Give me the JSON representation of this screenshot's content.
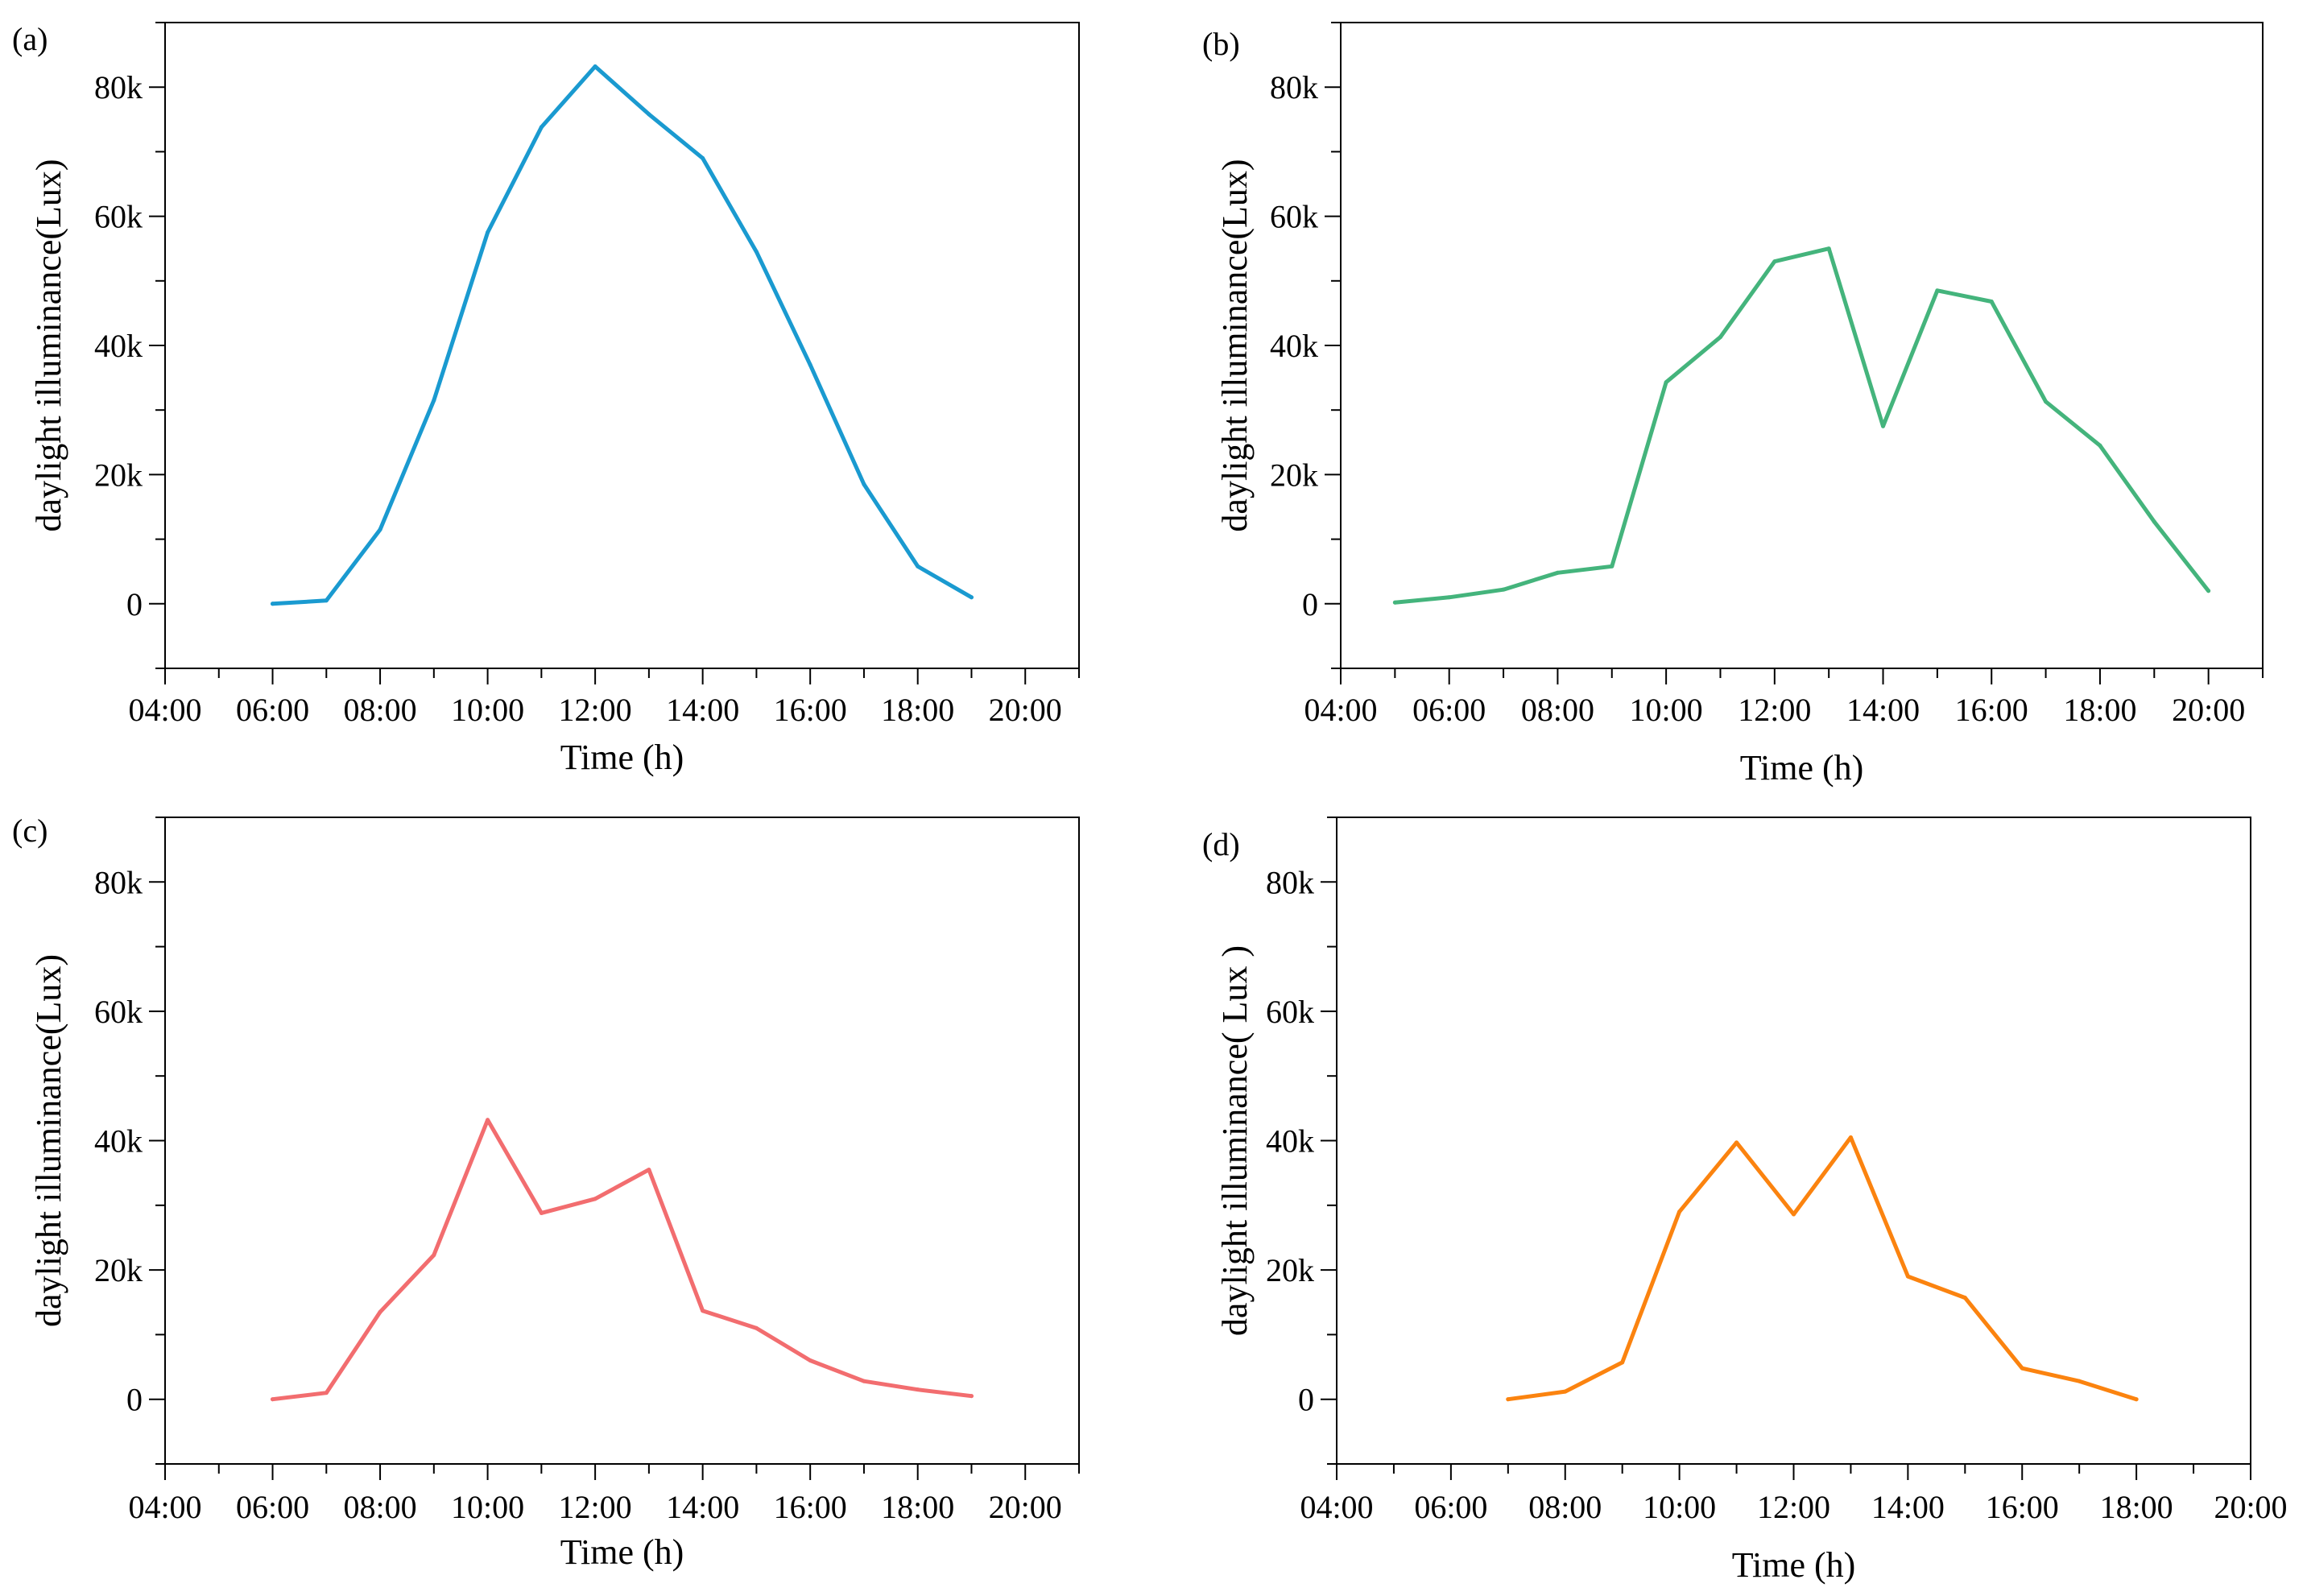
{
  "chart_data": [
    {
      "type": "line",
      "panel_label": "(a)",
      "xlabel": "Time (h)",
      "ylabel": "daylight illuminance(Lux)",
      "color": "#1a9ad0",
      "xlim": [
        4,
        21
      ],
      "ylim": [
        -10000,
        90000
      ],
      "xticks": [
        4,
        6,
        8,
        10,
        12,
        14,
        16,
        18,
        20
      ],
      "xtick_labels": [
        "04:00",
        "06:00",
        "08:00",
        "10:00",
        "12:00",
        "14:00",
        "16:00",
        "18:00",
        "20:00"
      ],
      "yticks": [
        0,
        20000,
        40000,
        60000,
        80000
      ],
      "ytick_labels": [
        "0",
        "20k",
        "40k",
        "60k",
        "80k"
      ],
      "x": [
        6,
        7,
        8,
        9,
        10,
        11,
        12,
        13,
        14,
        15,
        16,
        17,
        18,
        19
      ],
      "values": [
        0,
        500,
        11500,
        31500,
        57500,
        73800,
        83200,
        75800,
        69000,
        54500,
        37000,
        18500,
        5800,
        1000
      ]
    },
    {
      "type": "line",
      "panel_label": "(b)",
      "xlabel": "Time (h)",
      "ylabel": "daylight illuminance(Lux)",
      "color": "#44b47c",
      "xlim": [
        4,
        21
      ],
      "ylim": [
        -10000,
        90000
      ],
      "xticks": [
        4,
        6,
        8,
        10,
        12,
        14,
        16,
        18,
        20
      ],
      "xtick_labels": [
        "04:00",
        "06:00",
        "08:00",
        "10:00",
        "12:00",
        "14:00",
        "16:00",
        "18:00",
        "20:00"
      ],
      "yticks": [
        0,
        20000,
        40000,
        60000,
        80000
      ],
      "ytick_labels": [
        "0",
        "20k",
        "40k",
        "60k",
        "80k"
      ],
      "x": [
        5,
        6,
        7,
        8,
        9,
        10,
        11,
        12,
        13,
        14,
        15,
        16,
        17,
        18,
        19,
        20
      ],
      "values": [
        200,
        1000,
        2200,
        4800,
        5800,
        34300,
        41300,
        53000,
        55000,
        27500,
        48500,
        46800,
        31300,
        24500,
        12700,
        2000
      ]
    },
    {
      "type": "line",
      "panel_label": "(c)",
      "xlabel": "Time (h)",
      "ylabel": "daylight illuminance(Lux)",
      "color": "#f26d6f",
      "xlim": [
        4,
        21
      ],
      "ylim": [
        -10000,
        90000
      ],
      "xticks": [
        4,
        6,
        8,
        10,
        12,
        14,
        16,
        18,
        20
      ],
      "xtick_labels": [
        "04:00",
        "06:00",
        "08:00",
        "10:00",
        "12:00",
        "14:00",
        "16:00",
        "18:00",
        "20:00"
      ],
      "yticks": [
        0,
        20000,
        40000,
        60000,
        80000
      ],
      "ytick_labels": [
        "0",
        "20k",
        "40k",
        "60k",
        "80k"
      ],
      "x": [
        6,
        7,
        8,
        9,
        10,
        11,
        12,
        13,
        14,
        15,
        16,
        17,
        18,
        19
      ],
      "values": [
        0,
        1000,
        13500,
        22300,
        43200,
        28800,
        31000,
        35500,
        13700,
        11000,
        6000,
        2800,
        1500,
        500
      ]
    },
    {
      "type": "line",
      "panel_label": "(d)",
      "xlabel": "Time (h)",
      "ylabel": "daylight illuminance( Lux )",
      "color": "#fb830f",
      "xlim": [
        4,
        20
      ],
      "ylim": [
        -10000,
        90000
      ],
      "xticks": [
        4,
        6,
        8,
        10,
        12,
        14,
        16,
        18,
        20
      ],
      "xtick_labels": [
        "04:00",
        "06:00",
        "08:00",
        "10:00",
        "12:00",
        "14:00",
        "16:00",
        "18:00",
        "20:00"
      ],
      "yticks": [
        0,
        20000,
        40000,
        60000,
        80000
      ],
      "ytick_labels": [
        "0",
        "20k",
        "40k",
        "60k",
        "80k"
      ],
      "x": [
        7,
        8,
        9,
        10,
        11,
        12,
        13,
        14,
        15,
        16,
        17,
        18
      ],
      "values": [
        0,
        1200,
        5700,
        29000,
        39700,
        28600,
        40500,
        19000,
        15700,
        4800,
        2800,
        0
      ]
    }
  ]
}
